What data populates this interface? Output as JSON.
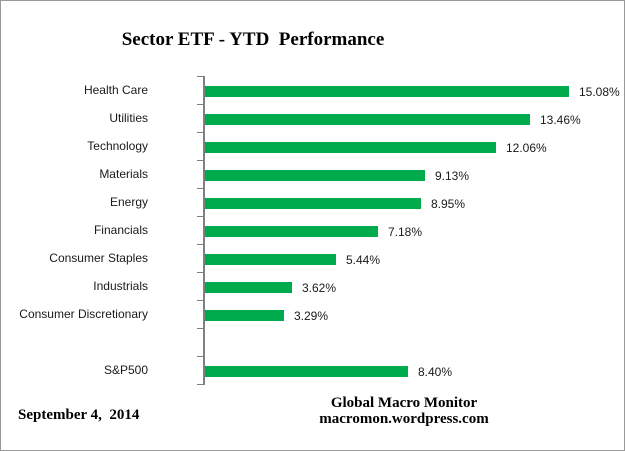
{
  "title": "Sector ETF - YTD  Performance",
  "footer": {
    "date": "September 4,  2014",
    "attribution_line1": "Global Macro Monitor",
    "attribution_line2": "macromon.wordpress.com"
  },
  "colors": {
    "bar": "#00AB4E",
    "axis": "#808080",
    "frame_border": "#999999",
    "text": "#000000"
  },
  "chart_data": {
    "type": "bar",
    "orientation": "horizontal",
    "title": "Sector ETF - YTD  Performance",
    "xlabel": "",
    "ylabel": "",
    "xlim": [
      0,
      16.5
    ],
    "grid": false,
    "legend": false,
    "value_suffix": "%",
    "rows": [
      {
        "label": "Health Care",
        "value": 15.08,
        "display": "15.08%"
      },
      {
        "label": "Utilities",
        "value": 13.46,
        "display": "13.46%"
      },
      {
        "label": "Technology",
        "value": 12.06,
        "display": "12.06%"
      },
      {
        "label": "Materials",
        "value": 9.13,
        "display": "9.13%"
      },
      {
        "label": "Energy",
        "value": 8.95,
        "display": "8.95%"
      },
      {
        "label": "Financials",
        "value": 7.18,
        "display": "7.18%"
      },
      {
        "label": "Consumer Staples",
        "value": 5.44,
        "display": "5.44%"
      },
      {
        "label": "Industrials",
        "value": 3.62,
        "display": "3.62%"
      },
      {
        "label": "Consumer Discretionary",
        "value": 3.29,
        "display": "3.29%"
      },
      {
        "label": "",
        "value": null,
        "display": ""
      },
      {
        "label": "S&P500",
        "value": 8.4,
        "display": "8.40%"
      }
    ]
  }
}
